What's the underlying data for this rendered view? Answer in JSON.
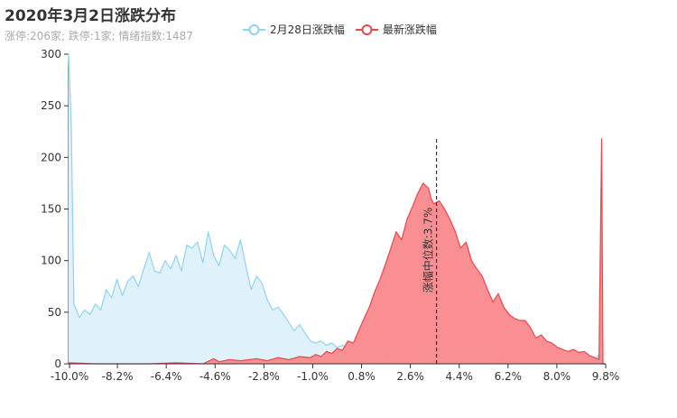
{
  "title": "2020年3月2日涨跌分布",
  "subtitle": "涨停:206家; 跌停:1家; 情绪指数:1487",
  "legend": [
    {
      "name": "2月28日涨跌幅",
      "color": "#8fd3f0"
    },
    {
      "name": "最新涨跌幅",
      "color": "#e8474d"
    }
  ],
  "chart_data": {
    "type": "area",
    "x_ticks": [
      "-10.0%",
      "-8.2%",
      "-6.4%",
      "-4.6%",
      "-2.8%",
      "-1.0%",
      "0.8%",
      "2.6%",
      "4.4%",
      "6.2%",
      "8.0%",
      "9.8%"
    ],
    "xlim": [
      -10.0,
      10.0
    ],
    "ylim": [
      0,
      300
    ],
    "y_ticks": [
      0,
      50,
      100,
      150,
      200,
      250,
      300
    ],
    "median_label": "涨幅中位数:3.7%",
    "median_x": 3.7,
    "series": [
      {
        "name": "2月28日涨跌幅",
        "line_color": "#8fd3f0",
        "fill_color": "#dff2fb",
        "points": [
          [
            -10.0,
            300
          ],
          [
            -9.9,
            230
          ],
          [
            -9.8,
            58
          ],
          [
            -9.6,
            45
          ],
          [
            -9.4,
            52
          ],
          [
            -9.2,
            48
          ],
          [
            -9.0,
            58
          ],
          [
            -8.8,
            52
          ],
          [
            -8.6,
            72
          ],
          [
            -8.4,
            64
          ],
          [
            -8.2,
            82
          ],
          [
            -8.0,
            66
          ],
          [
            -7.8,
            80
          ],
          [
            -7.6,
            85
          ],
          [
            -7.4,
            75
          ],
          [
            -7.2,
            92
          ],
          [
            -7.0,
            108
          ],
          [
            -6.8,
            90
          ],
          [
            -6.6,
            88
          ],
          [
            -6.4,
            100
          ],
          [
            -6.2,
            92
          ],
          [
            -6.0,
            105
          ],
          [
            -5.8,
            90
          ],
          [
            -5.6,
            115
          ],
          [
            -5.4,
            112
          ],
          [
            -5.2,
            118
          ],
          [
            -5.0,
            98
          ],
          [
            -4.8,
            128
          ],
          [
            -4.6,
            105
          ],
          [
            -4.4,
            95
          ],
          [
            -4.2,
            115
          ],
          [
            -4.0,
            110
          ],
          [
            -3.8,
            102
          ],
          [
            -3.6,
            120
          ],
          [
            -3.4,
            95
          ],
          [
            -3.2,
            72
          ],
          [
            -3.0,
            85
          ],
          [
            -2.8,
            78
          ],
          [
            -2.6,
            62
          ],
          [
            -2.4,
            52
          ],
          [
            -2.2,
            55
          ],
          [
            -2.0,
            48
          ],
          [
            -1.8,
            40
          ],
          [
            -1.6,
            32
          ],
          [
            -1.4,
            38
          ],
          [
            -1.2,
            30
          ],
          [
            -1.0,
            22
          ],
          [
            -0.8,
            20
          ],
          [
            -0.6,
            22
          ],
          [
            -0.4,
            18
          ],
          [
            -0.2,
            20
          ],
          [
            0.0,
            16
          ],
          [
            0.2,
            18
          ],
          [
            0.4,
            15
          ],
          [
            0.8,
            12
          ],
          [
            1.2,
            10
          ],
          [
            1.6,
            8
          ],
          [
            2.0,
            10
          ],
          [
            2.4,
            7
          ],
          [
            2.8,
            8
          ],
          [
            3.2,
            6
          ],
          [
            3.6,
            7
          ],
          [
            4.0,
            5
          ],
          [
            4.4,
            6
          ],
          [
            4.8,
            5
          ],
          [
            5.2,
            4
          ],
          [
            5.6,
            5
          ],
          [
            6.0,
            4
          ],
          [
            6.4,
            3
          ],
          [
            6.8,
            3
          ],
          [
            7.2,
            2
          ],
          [
            7.6,
            2
          ],
          [
            8.0,
            2
          ],
          [
            8.4,
            1
          ],
          [
            8.8,
            1
          ],
          [
            9.2,
            1
          ],
          [
            9.6,
            2
          ],
          [
            9.8,
            12
          ],
          [
            9.9,
            0
          ],
          [
            10.0,
            0
          ]
        ]
      },
      {
        "name": "最新涨跌幅",
        "line_color": "#e8474d",
        "fill_color": "#f98b8e",
        "points": [
          [
            -10.0,
            1
          ],
          [
            -9.0,
            0
          ],
          [
            -8.0,
            0
          ],
          [
            -7.0,
            0
          ],
          [
            -6.0,
            1
          ],
          [
            -5.0,
            0
          ],
          [
            -4.6,
            5
          ],
          [
            -4.4,
            2
          ],
          [
            -4.0,
            4
          ],
          [
            -3.6,
            3
          ],
          [
            -3.0,
            5
          ],
          [
            -2.6,
            3
          ],
          [
            -2.2,
            6
          ],
          [
            -1.8,
            4
          ],
          [
            -1.4,
            7
          ],
          [
            -1.0,
            6
          ],
          [
            -0.8,
            9
          ],
          [
            -0.6,
            7
          ],
          [
            -0.4,
            12
          ],
          [
            -0.2,
            10
          ],
          [
            0.0,
            15
          ],
          [
            0.2,
            13
          ],
          [
            0.4,
            22
          ],
          [
            0.6,
            20
          ],
          [
            0.8,
            32
          ],
          [
            1.0,
            44
          ],
          [
            1.2,
            55
          ],
          [
            1.4,
            70
          ],
          [
            1.6,
            82
          ],
          [
            1.8,
            97
          ],
          [
            2.0,
            112
          ],
          [
            2.2,
            128
          ],
          [
            2.4,
            120
          ],
          [
            2.6,
            140
          ],
          [
            2.8,
            152
          ],
          [
            3.0,
            165
          ],
          [
            3.2,
            175
          ],
          [
            3.4,
            170
          ],
          [
            3.5,
            160
          ],
          [
            3.6,
            155
          ],
          [
            3.8,
            158
          ],
          [
            4.0,
            150
          ],
          [
            4.2,
            140
          ],
          [
            4.4,
            128
          ],
          [
            4.6,
            112
          ],
          [
            4.8,
            118
          ],
          [
            5.0,
            100
          ],
          [
            5.2,
            92
          ],
          [
            5.4,
            85
          ],
          [
            5.6,
            72
          ],
          [
            5.8,
            60
          ],
          [
            6.0,
            68
          ],
          [
            6.2,
            55
          ],
          [
            6.4,
            48
          ],
          [
            6.6,
            44
          ],
          [
            6.8,
            42
          ],
          [
            7.0,
            42
          ],
          [
            7.2,
            35
          ],
          [
            7.4,
            25
          ],
          [
            7.6,
            28
          ],
          [
            7.8,
            22
          ],
          [
            8.0,
            20
          ],
          [
            8.2,
            16
          ],
          [
            8.4,
            14
          ],
          [
            8.6,
            12
          ],
          [
            8.8,
            14
          ],
          [
            9.0,
            11
          ],
          [
            9.2,
            12
          ],
          [
            9.4,
            8
          ],
          [
            9.6,
            6
          ],
          [
            9.75,
            4
          ],
          [
            9.85,
            218
          ],
          [
            9.9,
            0
          ],
          [
            10.0,
            0
          ]
        ]
      }
    ]
  }
}
